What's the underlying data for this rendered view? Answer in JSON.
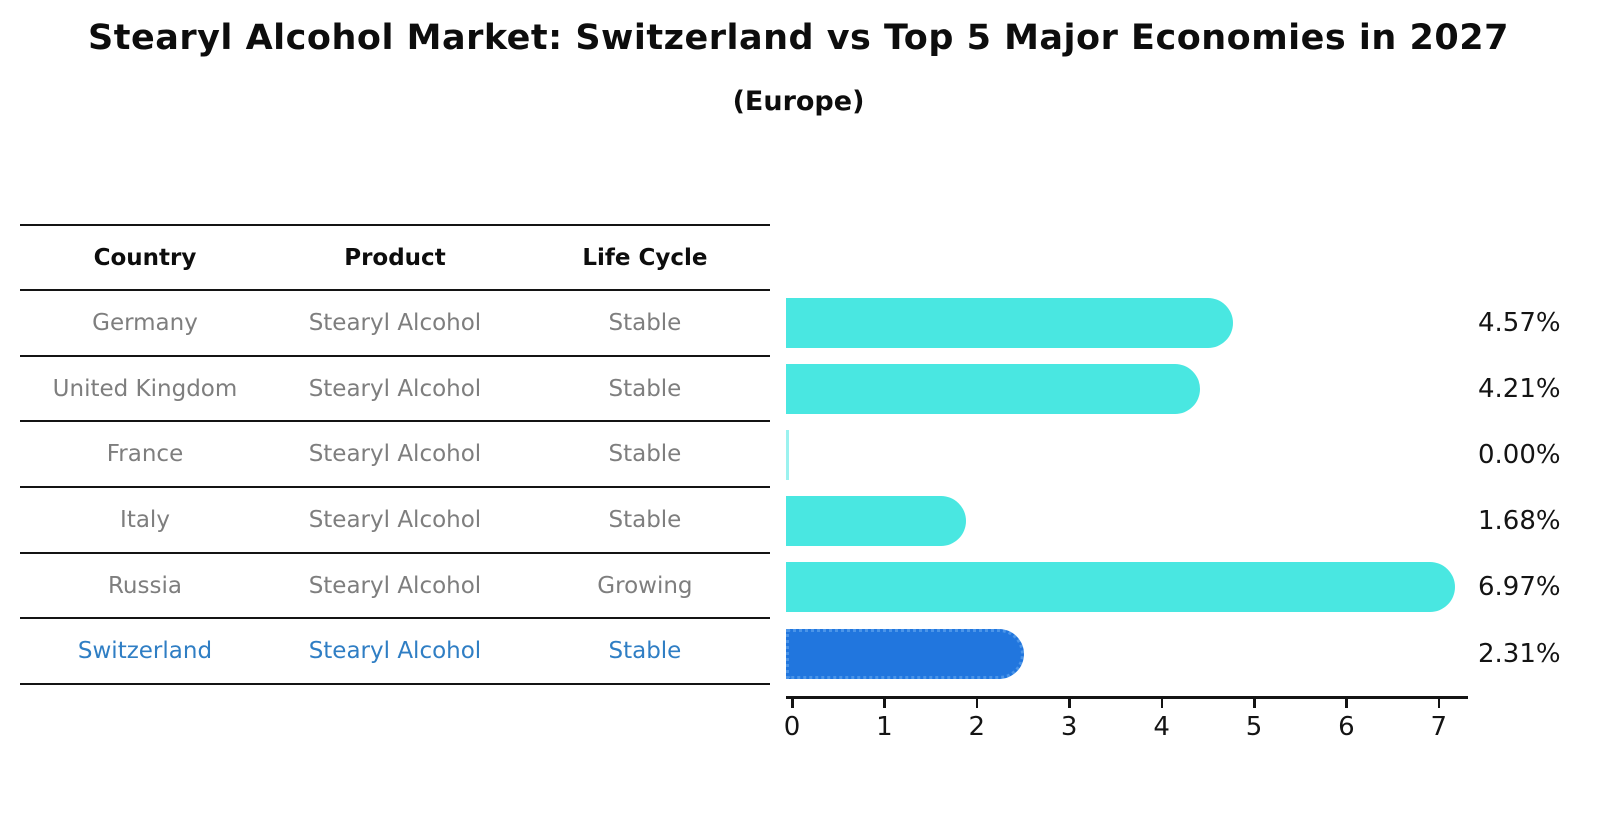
{
  "header": {
    "title": "Stearyl Alcohol Market: Switzerland vs Top 5 Major Economies in 2027",
    "subtitle": "(Europe)"
  },
  "table": {
    "headers": [
      "Country",
      "Product",
      "Life Cycle"
    ],
    "rows": [
      {
        "country": "Germany",
        "product": "Stearyl Alcohol",
        "life_cycle": "Stable"
      },
      {
        "country": "United Kingdom",
        "product": "Stearyl Alcohol",
        "life_cycle": "Stable"
      },
      {
        "country": "France",
        "product": "Stearyl Alcohol",
        "life_cycle": "Stable"
      },
      {
        "country": "Italy",
        "product": "Stearyl Alcohol",
        "life_cycle": "Stable"
      },
      {
        "country": "Russia",
        "product": "Stearyl Alcohol",
        "life_cycle": "Growing"
      },
      {
        "country": "Switzerland",
        "product": "Stearyl Alcohol",
        "life_cycle": "Stable"
      }
    ],
    "highlight_row": 5
  },
  "chart_data": {
    "type": "bar",
    "orientation": "horizontal",
    "title": "Stearyl Alcohol Market: Switzerland vs Top 5 Major Economies in 2027",
    "subtitle": "(Europe)",
    "categories": [
      "Germany",
      "United Kingdom",
      "France",
      "Italy",
      "Russia",
      "Switzerland"
    ],
    "values": [
      4.57,
      4.21,
      0.0,
      1.68,
      6.97,
      2.31
    ],
    "value_labels": [
      "4.57%",
      "4.21%",
      "0.00%",
      "1.68%",
      "6.97%",
      "2.31%"
    ],
    "x_ticks": [
      "0",
      "1",
      "2",
      "3",
      "4",
      "5",
      "6",
      "7"
    ],
    "xlim": [
      0,
      7.35
    ],
    "grid": "off",
    "legend": "none",
    "highlight_index": 5,
    "colors": {
      "bar_default": "#49e7e1",
      "bar_highlight": "#2176de",
      "highlight_text": "#2f7ec4",
      "label_text": "#141414",
      "row_text": "#7e7e7e"
    }
  }
}
